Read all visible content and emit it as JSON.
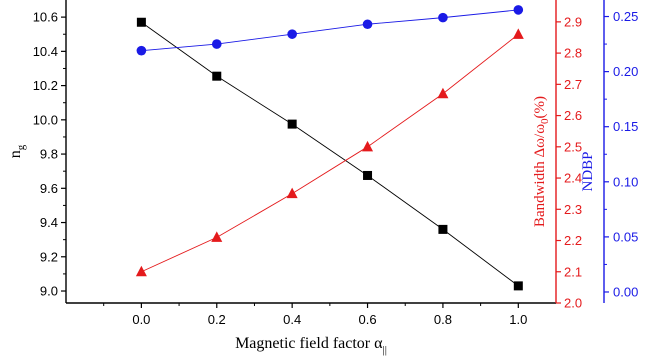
{
  "chart_data": {
    "type": "line",
    "title": "",
    "xlabel": "Magnetic field factor α",
    "xlabel_subscript": "||",
    "xlim": [
      -0.2,
      1.1
    ],
    "xticks": [
      "0.0",
      "0.2",
      "0.4",
      "0.6",
      "0.8",
      "1.0"
    ],
    "grid": false,
    "legend": "none",
    "axes": {
      "left": {
        "label": "n",
        "label_subscript": "g",
        "color": "#000000",
        "ylim": [
          8.93,
          10.7
        ],
        "ticks": [
          "9.0",
          "9.2",
          "9.4",
          "9.6",
          "9.8",
          "10.0",
          "10.2",
          "10.4",
          "10.6"
        ]
      },
      "right1": {
        "label_prefix": "Bandwidth Δω/ω",
        "label_subscript": "0",
        "label_suffix": "(%)",
        "color": "#e41a1c",
        "ylim": [
          2.0,
          2.97
        ],
        "ticks": [
          "2.0",
          "2.1",
          "2.2",
          "2.3",
          "2.4",
          "2.5",
          "2.6",
          "2.7",
          "2.8",
          "2.9"
        ]
      },
      "right2": {
        "label": "NDBP",
        "color": "#1a1ae6",
        "ylim": [
          -0.01,
          0.265
        ],
        "ticks": [
          "0.00",
          "0.05",
          "0.10",
          "0.15",
          "0.20",
          "0.25"
        ]
      }
    },
    "x": [
      0.0,
      0.2,
      0.4,
      0.6,
      0.8,
      1.0
    ],
    "series": [
      {
        "axis": "left",
        "marker": "square",
        "color": "#000000",
        "values": [
          10.57,
          10.255,
          9.975,
          9.675,
          9.36,
          9.03
        ]
      },
      {
        "axis": "right1",
        "marker": "triangle",
        "color": "#e41a1c",
        "values": [
          2.1,
          2.21,
          2.35,
          2.5,
          2.67,
          2.86
        ]
      },
      {
        "axis": "right2",
        "marker": "circle",
        "color": "#1a1ae6",
        "values": [
          0.219,
          0.225,
          0.234,
          0.243,
          0.249,
          0.256
        ]
      }
    ]
  }
}
